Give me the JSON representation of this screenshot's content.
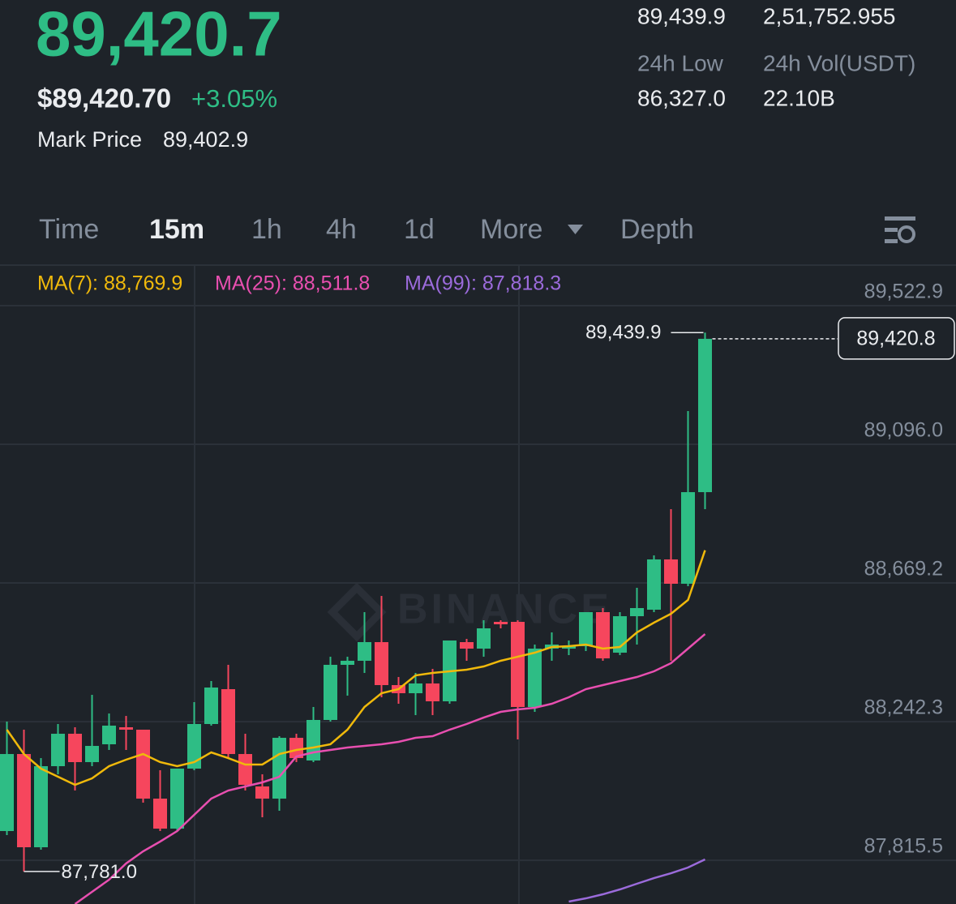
{
  "header": {
    "price": "89,420.7",
    "usd_price": "$89,420.70",
    "change": "+3.05%",
    "mark_price_label": "Mark Price",
    "mark_price": "89,402.9"
  },
  "stats": {
    "high_24h": "89,439.9",
    "volume_base": "2,51,752.955",
    "low_label": "24h Low",
    "vol_label": "24h Vol(USDT)",
    "low_24h": "86,327.0",
    "vol_usdt": "22.10B"
  },
  "tabs": [
    "Time",
    "15m",
    "1h",
    "4h",
    "1d",
    "More",
    "Depth"
  ],
  "active_tab": 1,
  "chart_data": {
    "type": "candlestick",
    "up_color": "#2ebd85",
    "down_color": "#f6465d",
    "grid": true,
    "watermark": "BINANCE",
    "ylim": [
      87680.9,
      89522.9
    ],
    "yticks": [
      {
        "value": 89522.9,
        "label": "89,522.9"
      },
      {
        "value": 89096.0,
        "label": "89,096.0"
      },
      {
        "value": 88669.2,
        "label": "88,669.2"
      },
      {
        "value": 88242.3,
        "label": "88,242.3"
      },
      {
        "value": 87815.5,
        "label": "87,815.5"
      }
    ],
    "open": [
      87905.5,
      88142.6,
      87855.6,
      88105.2,
      88205.0,
      88117.7,
      88172.6,
      88225.0,
      88217.5,
      88005.3,
      87912.9,
      88097.7,
      88235.0,
      88342.3,
      88142.6,
      88042.8,
      88005.3,
      88192.5,
      88122.7,
      88247.5,
      88417.2,
      88429.7,
      88487.1,
      88354.8,
      88329.8,
      88359.8,
      88304.9,
      88487.1,
      88467.1,
      88549.5,
      88549.5,
      88287.4,
      88467.1,
      88467.1,
      88474.6,
      88579.4,
      88454.6,
      88566.9,
      88586.9,
      88741.7,
      88666.8,
      88948.8
    ],
    "high": [
      88242.5,
      88217.5,
      88130.1,
      88235.0,
      88225.0,
      88324.8,
      88267.4,
      88259.9,
      88217.5,
      88092.7,
      88097.7,
      88302.4,
      88367.3,
      88417.2,
      88205.0,
      88080.2,
      88197.5,
      88205.0,
      88287.4,
      88442.1,
      88442.1,
      88579.4,
      88629.3,
      88379.7,
      88392.2,
      88404.7,
      88492.1,
      88497.1,
      88554.5,
      88554.5,
      88554.5,
      88479.6,
      88517.0,
      88492.1,
      88579.4,
      88591.9,
      88579.4,
      88654.3,
      88754.1,
      88896.4,
      89198.4,
      89439.9
    ],
    "low": [
      87893.0,
      87781.0,
      87848.1,
      88080.2,
      88030.3,
      88105.2,
      88155.1,
      88155.1,
      87992.9,
      87905.5,
      87905.5,
      88092.7,
      88230.0,
      88130.1,
      88030.3,
      87947.9,
      87967.9,
      88117.7,
      88117.7,
      88242.5,
      88322.3,
      88392.2,
      88317.3,
      88297.4,
      88262.4,
      88262.4,
      88297.4,
      88429.7,
      88442.1,
      88529.5,
      88187.5,
      88272.4,
      88429.7,
      88447.1,
      88459.6,
      88429.7,
      88447.1,
      88479.6,
      88579.4,
      88429.7,
      88659.3,
      88896.4
    ],
    "close": [
      88142.6,
      87855.6,
      88105.2,
      88205.0,
      88117.7,
      88167.6,
      88230.0,
      88217.5,
      88005.3,
      87912.9,
      88097.7,
      88235.0,
      88347.3,
      88142.6,
      88047.8,
      88005.3,
      88192.5,
      88130.1,
      88247.5,
      88417.2,
      88429.7,
      88487.1,
      88354.8,
      88329.8,
      88359.8,
      88304.9,
      88492.1,
      88467.1,
      88529.5,
      88542.0,
      88287.4,
      88467.1,
      88479.6,
      88474.6,
      88579.4,
      88437.1,
      88566.9,
      88591.9,
      88741.7,
      88666.8,
      88948.8,
      89420.8
    ],
    "series": [
      {
        "name": "MA(7): 88,769.9",
        "color": "#f0b90b",
        "values": [
          88217.5,
          88142.6,
          88097.7,
          88072.7,
          88047.8,
          88067.7,
          88105.2,
          88125.2,
          88142.6,
          88117.7,
          88105.2,
          88117.7,
          88147.6,
          88130.1,
          88110.2,
          88110.2,
          88142.6,
          88155.1,
          88162.6,
          88172.6,
          88217.5,
          88287.4,
          88329.8,
          88342.3,
          88384.7,
          88392.2,
          88397.2,
          88402.2,
          88412.2,
          88429.7,
          88442.1,
          88454.6,
          88472.1,
          88474.6,
          88479.6,
          88467.1,
          88472.1,
          88517.0,
          88547.0,
          88574.4,
          88616.9,
          88769.9
        ]
      },
      {
        "name": "MA(25): 88,511.8",
        "color": "#e84fb0",
        "values": [
          null,
          null,
          null,
          null,
          87680.9,
          87718.3,
          87755.7,
          87805.7,
          87843.1,
          87873.1,
          87905.5,
          87955.4,
          88005.3,
          88030.3,
          88042.8,
          88055.3,
          88072.7,
          88135.1,
          88147.6,
          88155.1,
          88162.6,
          88167.6,
          88172.6,
          88180.1,
          88192.5,
          88197.5,
          88217.5,
          88235.0,
          88254.9,
          88272.4,
          88279.9,
          88284.9,
          88297.4,
          88317.3,
          88342.3,
          88354.8,
          88367.3,
          88379.7,
          88397.2,
          88422.2,
          88467.1,
          88511.8
        ]
      },
      {
        "name": "MA(99): 87,818.3",
        "color": "#9b6bdb",
        "values": [
          null,
          null,
          null,
          null,
          null,
          null,
          null,
          null,
          null,
          null,
          null,
          null,
          null,
          null,
          null,
          null,
          null,
          null,
          null,
          null,
          null,
          null,
          null,
          null,
          null,
          null,
          null,
          null,
          null,
          null,
          null,
          null,
          null,
          87688.4,
          87698.3,
          87710.8,
          87725.8,
          87743.3,
          87760.7,
          87775.7,
          87793.2,
          87818.3
        ]
      }
    ],
    "annotations": {
      "high_label": "89,439.9",
      "low_label": "87,781.0",
      "last_price_label": "89,420.8"
    }
  }
}
